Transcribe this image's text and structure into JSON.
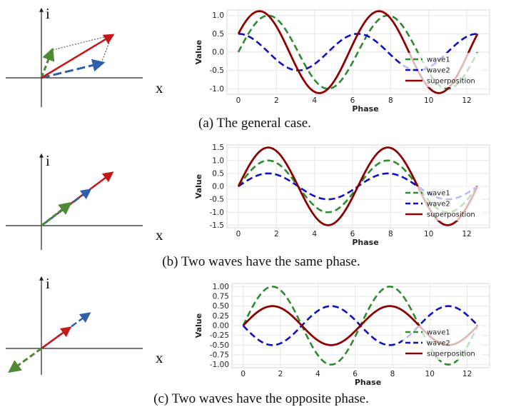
{
  "colors": {
    "wave1": "#2e8b2e",
    "wave2": "#1010c0",
    "superposition": "#8b0000",
    "vec_blue": "#2f5fa8",
    "grid": "#e6e6e6"
  },
  "panels": [
    {
      "caption": "(a) The general case.",
      "vector_axes": {
        "x_label": "x",
        "y_label": "i"
      }
    },
    {
      "caption": "(b) Two waves have the same phase.",
      "vector_axes": {
        "x_label": "x",
        "y_label": "i"
      }
    },
    {
      "caption": "(c) Two waves have the opposite phase.",
      "vector_axes": {
        "x_label": "x",
        "y_label": "i"
      }
    }
  ],
  "chart_data": [
    {
      "type": "line",
      "xlabel": "Phase",
      "ylabel": "Value",
      "xlim": [
        -0.6,
        13.2
      ],
      "ylim": [
        -1.15,
        1.15
      ],
      "x_ticks": [
        "0",
        "2",
        "4",
        "6",
        "8",
        "10",
        "12"
      ],
      "y_ticks": [
        "-1.0",
        "-0.5",
        "0.0",
        "0.5",
        "1.0"
      ],
      "grid": true,
      "legend": "lower-right",
      "x_range": [
        0,
        12.566
      ],
      "series": [
        {
          "name": "wave1",
          "style": "dashed",
          "formula": "sin(x)",
          "amplitude": 1.0,
          "phase": 0
        },
        {
          "name": "wave2",
          "style": "dashed",
          "formula": "0.5*cos(x)",
          "amplitude": 0.5,
          "phase": 1.5708
        },
        {
          "name": "superposition",
          "style": "solid",
          "formula": "sin(x)+0.5*cos(x)",
          "amplitude": 1.118,
          "phase": 0.4636
        }
      ]
    },
    {
      "type": "line",
      "xlabel": "Phase",
      "ylabel": "Value",
      "xlim": [
        -0.6,
        13.2
      ],
      "ylim": [
        -1.6,
        1.6
      ],
      "x_ticks": [
        "0",
        "2",
        "4",
        "6",
        "8",
        "10",
        "12"
      ],
      "y_ticks": [
        "-1.5",
        "-1.0",
        "-0.5",
        "0.0",
        "0.5",
        "1.0",
        "1.5"
      ],
      "grid": true,
      "legend": "lower-right",
      "x_range": [
        0,
        12.566
      ],
      "series": [
        {
          "name": "wave1",
          "style": "dashed",
          "formula": "sin(x)",
          "amplitude": 1.0,
          "phase": 0
        },
        {
          "name": "wave2",
          "style": "dashed",
          "formula": "0.5*sin(x)",
          "amplitude": 0.5,
          "phase": 0
        },
        {
          "name": "superposition",
          "style": "solid",
          "formula": "1.5*sin(x)",
          "amplitude": 1.5,
          "phase": 0
        }
      ]
    },
    {
      "type": "line",
      "xlabel": "Phase",
      "ylabel": "Value",
      "xlim": [
        -0.6,
        13.2
      ],
      "ylim": [
        -1.08,
        1.08
      ],
      "x_ticks": [
        "0",
        "2",
        "4",
        "6",
        "8",
        "10",
        "12"
      ],
      "y_ticks": [
        "-1.00",
        "-0.75",
        "-0.50",
        "-0.25",
        "0.00",
        "0.25",
        "0.50",
        "0.75",
        "1.00"
      ],
      "grid": true,
      "legend": "lower-right",
      "x_range": [
        0,
        12.566
      ],
      "series": [
        {
          "name": "wave1",
          "style": "dashed",
          "formula": "sin(x)",
          "amplitude": 1.0,
          "phase": 0
        },
        {
          "name": "wave2",
          "style": "dashed",
          "formula": "-0.5*sin(x)",
          "amplitude": 0.5,
          "phase": 3.1416
        },
        {
          "name": "superposition",
          "style": "solid",
          "formula": "0.5*sin(x)",
          "amplitude": 0.5,
          "phase": 0
        }
      ]
    }
  ]
}
